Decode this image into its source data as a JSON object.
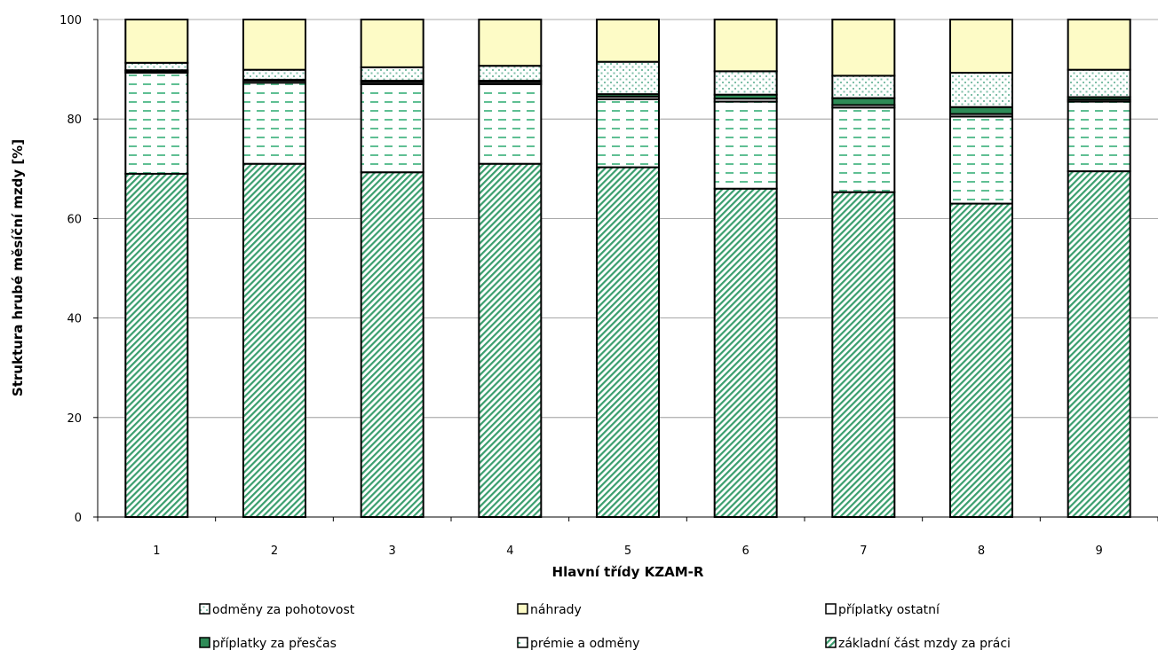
{
  "chart_data": {
    "type": "bar",
    "stacked": true,
    "title": "",
    "xlabel": "Hlavní třídy KZAM-R",
    "ylabel": "Struktura hrubé měsíční mzdy [%]",
    "ylim": [
      0,
      100
    ],
    "yticks": [
      0,
      20,
      40,
      60,
      80,
      100
    ],
    "grid": true,
    "legend_position": "bottom",
    "categories": [
      "1",
      "2",
      "3",
      "4",
      "5",
      "6",
      "7",
      "8",
      "9"
    ],
    "series": [
      {
        "name": "základní část mzdy za práci",
        "pattern": "diagonal",
        "color": "#3a9e6e",
        "values": [
          69.0,
          71.0,
          69.3,
          71.0,
          70.3,
          66.0,
          65.3,
          63.0,
          69.5
        ]
      },
      {
        "name": "prémie a odměny",
        "pattern": "dashes",
        "color": "#5fbf93",
        "values": [
          20.3,
          16.3,
          17.7,
          16.0,
          13.7,
          17.5,
          17.0,
          17.5,
          14.0
        ]
      },
      {
        "name": "příplatky ostatní",
        "pattern": "none",
        "color": "#ffffff",
        "values": [
          0.3,
          0.4,
          0.4,
          0.4,
          0.5,
          0.6,
          0.5,
          0.5,
          0.4
        ]
      },
      {
        "name": "příplatky  za přesčas",
        "pattern": "solid",
        "color": "#2e8b57",
        "values": [
          0.2,
          0.2,
          0.3,
          0.3,
          0.5,
          0.8,
          1.4,
          1.4,
          0.5
        ]
      },
      {
        "name": "odměny za pohotovost",
        "pattern": "dots",
        "color": "#7fbfa8",
        "values": [
          1.5,
          2.0,
          2.7,
          3.0,
          6.5,
          4.7,
          4.5,
          6.9,
          5.5
        ]
      },
      {
        "name": "náhrady",
        "pattern": "none",
        "color": "#fdfbc6",
        "values": [
          8.7,
          10.1,
          9.6,
          9.3,
          8.5,
          10.4,
          11.3,
          10.7,
          10.1
        ]
      }
    ],
    "legend_rows": [
      [
        "odměny za pohotovost",
        "náhrady",
        "příplatky ostatní"
      ],
      [
        "příplatky  za přesčas",
        "prémie a odměny",
        "základní část mzdy za práci"
      ]
    ]
  }
}
